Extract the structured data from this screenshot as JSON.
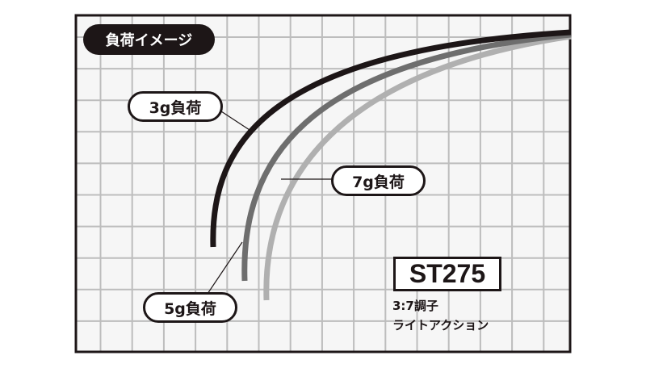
{
  "title": "負荷イメージ",
  "labels": {
    "load_3g": "3g負荷",
    "load_5g": "5g負荷",
    "load_7g": "7g負荷"
  },
  "model": {
    "name": "ST275",
    "taper": "3:7調子",
    "action": "ライトアクション"
  },
  "colors": {
    "load_3g": "#1d1617",
    "load_5g": "#6e6e6e",
    "load_7g": "#b0b0b0",
    "grid": "#bdbdbd",
    "frame": "#1d1617"
  }
}
